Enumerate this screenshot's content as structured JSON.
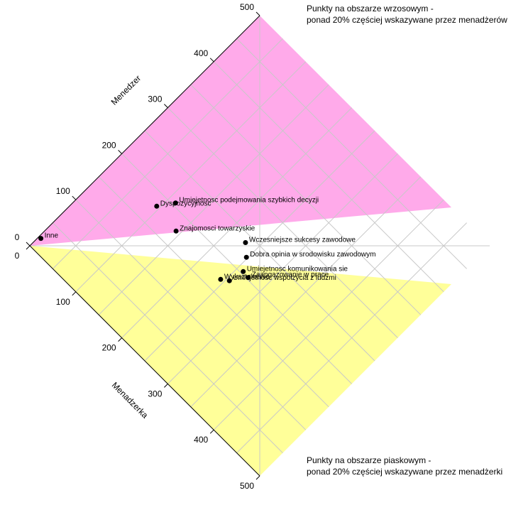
{
  "chart_data": {
    "type": "scatter",
    "axes": {
      "top": {
        "label": "Menedzer",
        "ticks": [
          0,
          100,
          200,
          300,
          400,
          500
        ],
        "tick_labels": [
          "0",
          "100",
          "200",
          "300",
          "400",
          "500"
        ]
      },
      "bottom": {
        "label": "Menadzerka",
        "ticks": [
          0,
          100,
          200,
          300,
          400,
          500
        ],
        "tick_labels": [
          "0",
          "100",
          "200",
          "300",
          "400",
          "500"
        ]
      },
      "range": [
        0,
        500
      ]
    },
    "regions": [
      {
        "name": "pink",
        "color": "#ffaaea"
      },
      {
        "name": "yellow",
        "color": "#ffff99"
      }
    ],
    "grid": true,
    "notes": {
      "top": [
        "Punkty na obszarze wrzosowym -",
        "ponad 20% częściej wskazywane przez menadżerów"
      ],
      "bottom": [
        "Punkty na obszarze piaskowym -",
        "ponad 20% częściej wskazywane przez menadżerki"
      ]
    },
    "points": [
      {
        "label": "Inne",
        "menedzer": 20,
        "menadzerka": 4
      },
      {
        "label": "Dyspozycyjnosc",
        "menedzer": 181,
        "menadzerka": 95
      },
      {
        "label": "Umiejetnosc podejmowania szybkich decyzji",
        "menedzer": 205,
        "menadzerka": 112
      },
      {
        "label": "Znajomosci towarzyskie",
        "menedzer": 175,
        "menadzerka": 143
      },
      {
        "label": "Wczesniejsze sukcesy zawodowe",
        "menedzer": 238,
        "menadzerka": 231
      },
      {
        "label": "Dobra opinia w srodowisku zawodowym",
        "menedzer": 223,
        "menadzerka": 248
      },
      {
        "label": "Umiejetnosc komunikowania sie",
        "menedzer": 204,
        "menadzerka": 260
      },
      {
        "label": "Zaangazowanie w prace",
        "menedzer": 203,
        "menadzerka": 272
      },
      {
        "label": "Wyksztalcenie",
        "menedzer": 171,
        "menadzerka": 244
      },
      {
        "label": "Umiejetnosc wspolzycia z ludzmi",
        "menedzer": 179,
        "menadzerka": 255
      }
    ]
  }
}
